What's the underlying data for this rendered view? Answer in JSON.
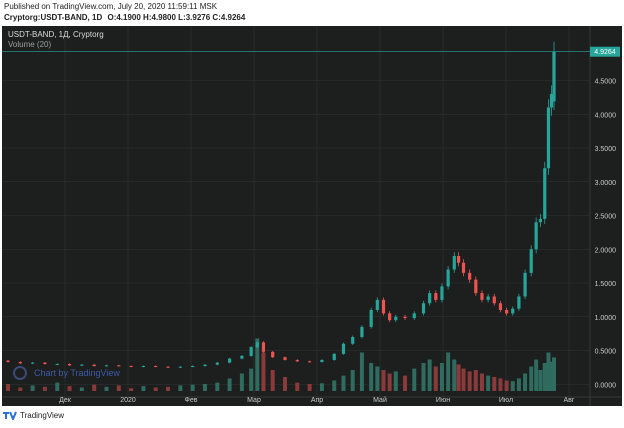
{
  "header": {
    "published": "Published on TradingView.com, July 20, 2020 11:59:11 MSK",
    "symbol_line": "Cryptorg:USDT-BAND, 1D",
    "ohlc": "O:4.1900 H:4.9800 L:3.9276 C:4.9264"
  },
  "legend": {
    "symbol": "USDT-BAND, 1Д, Cryptorg",
    "volume": "Volume (20)"
  },
  "watermark": "Chart by TradingView",
  "footer": {
    "brand": "TradingView"
  },
  "colors": {
    "background": "#1c1f1e",
    "grid": "#2e3432",
    "up": "#26a69a",
    "down": "#ef5350",
    "vol_up": "#2f6b5f",
    "vol_down": "#8a3a3a",
    "last_price": "#26a69a",
    "axis_text": "#c8ccca"
  },
  "chart_data": {
    "type": "candlestick",
    "title": "USDT-BAND, 1Д, Cryptorg",
    "ylim": [
      -0.1,
      5.1
    ],
    "yticks": [
      "0.0000",
      "0.5000",
      "1.0000",
      "1.5000",
      "2.0000",
      "2.5000",
      "3.0000",
      "3.5000",
      "4.0000",
      "4.5000"
    ],
    "last_price_label": "4.9264",
    "x_labels": [
      "Дек",
      "2020",
      "Фев",
      "Мар",
      "Апр",
      "Май",
      "Июн",
      "Июл",
      "Авг"
    ],
    "grid": true,
    "volume_series_name": "Volume (20)",
    "candles": [
      {
        "m": 0.0,
        "o": 0.35,
        "c": 0.33
      },
      {
        "m": 0.2,
        "o": 0.33,
        "c": 0.31
      },
      {
        "m": 0.4,
        "o": 0.31,
        "c": 0.32
      },
      {
        "m": 0.6,
        "o": 0.32,
        "c": 0.3
      },
      {
        "m": 0.8,
        "o": 0.3,
        "c": 0.3
      },
      {
        "m": 1.0,
        "o": 0.3,
        "c": 0.28
      },
      {
        "m": 1.2,
        "o": 0.28,
        "c": 0.29
      },
      {
        "m": 1.4,
        "o": 0.29,
        "c": 0.27
      },
      {
        "m": 1.6,
        "o": 0.27,
        "c": 0.28
      },
      {
        "m": 1.8,
        "o": 0.28,
        "c": 0.27
      },
      {
        "m": 2.0,
        "o": 0.27,
        "c": 0.26
      },
      {
        "m": 2.2,
        "o": 0.26,
        "c": 0.27
      },
      {
        "m": 2.4,
        "o": 0.27,
        "c": 0.26
      },
      {
        "m": 2.6,
        "o": 0.26,
        "c": 0.25
      },
      {
        "m": 2.8,
        "o": 0.25,
        "c": 0.26
      },
      {
        "m": 3.0,
        "o": 0.26,
        "c": 0.27
      },
      {
        "m": 3.2,
        "o": 0.27,
        "c": 0.29
      },
      {
        "m": 3.4,
        "o": 0.29,
        "c": 0.32
      },
      {
        "m": 3.6,
        "o": 0.32,
        "c": 0.38
      },
      {
        "m": 3.8,
        "o": 0.38,
        "c": 0.42
      },
      {
        "m": 3.95,
        "o": 0.42,
        "c": 0.55
      },
      {
        "m": 4.05,
        "o": 0.55,
        "c": 0.62
      },
      {
        "m": 4.15,
        "o": 0.62,
        "c": 0.48
      },
      {
        "m": 4.3,
        "o": 0.48,
        "c": 0.4
      },
      {
        "m": 4.5,
        "o": 0.4,
        "c": 0.36
      },
      {
        "m": 4.7,
        "o": 0.36,
        "c": 0.34
      },
      {
        "m": 4.9,
        "o": 0.34,
        "c": 0.33
      },
      {
        "m": 5.1,
        "o": 0.33,
        "c": 0.36
      },
      {
        "m": 5.3,
        "o": 0.36,
        "c": 0.45
      },
      {
        "m": 5.45,
        "o": 0.45,
        "c": 0.6
      },
      {
        "m": 5.6,
        "o": 0.6,
        "c": 0.7
      },
      {
        "m": 5.75,
        "o": 0.7,
        "c": 0.85
      },
      {
        "m": 5.9,
        "o": 0.85,
        "c": 1.1
      },
      {
        "m": 6.0,
        "o": 1.1,
        "c": 1.25
      },
      {
        "m": 6.1,
        "o": 1.25,
        "c": 1.05
      },
      {
        "m": 6.2,
        "o": 1.05,
        "c": 0.95
      },
      {
        "m": 6.3,
        "o": 0.95,
        "c": 1.0
      },
      {
        "m": 6.45,
        "o": 1.0,
        "c": 0.98
      },
      {
        "m": 6.6,
        "o": 0.98,
        "c": 1.05
      },
      {
        "m": 6.75,
        "o": 1.05,
        "c": 1.2
      },
      {
        "m": 6.85,
        "o": 1.2,
        "c": 1.35
      },
      {
        "m": 6.95,
        "o": 1.35,
        "c": 1.25
      },
      {
        "m": 7.05,
        "o": 1.25,
        "c": 1.45
      },
      {
        "m": 7.15,
        "o": 1.45,
        "c": 1.7
      },
      {
        "m": 7.25,
        "o": 1.7,
        "c": 1.9
      },
      {
        "m": 7.32,
        "o": 1.9,
        "c": 1.8
      },
      {
        "m": 7.4,
        "o": 1.8,
        "c": 1.65
      },
      {
        "m": 7.5,
        "o": 1.65,
        "c": 1.55
      },
      {
        "m": 7.6,
        "o": 1.55,
        "c": 1.35
      },
      {
        "m": 7.7,
        "o": 1.35,
        "c": 1.25
      },
      {
        "m": 7.8,
        "o": 1.25,
        "c": 1.3
      },
      {
        "m": 7.9,
        "o": 1.3,
        "c": 1.2
      },
      {
        "m": 8.0,
        "o": 1.2,
        "c": 1.1
      },
      {
        "m": 8.1,
        "o": 1.1,
        "c": 1.05
      },
      {
        "m": 8.2,
        "o": 1.05,
        "c": 1.12
      },
      {
        "m": 8.3,
        "o": 1.12,
        "c": 1.3
      },
      {
        "m": 8.4,
        "o": 1.3,
        "c": 1.65
      },
      {
        "m": 8.5,
        "o": 1.65,
        "c": 2.0
      },
      {
        "m": 8.58,
        "o": 2.0,
        "c": 2.4
      },
      {
        "m": 8.65,
        "o": 2.4,
        "c": 2.45
      },
      {
        "m": 8.72,
        "o": 2.45,
        "c": 3.2
      },
      {
        "m": 8.78,
        "o": 3.2,
        "c": 4.1
      },
      {
        "m": 8.83,
        "o": 4.1,
        "c": 4.3
      },
      {
        "m": 8.87,
        "o": 4.19,
        "c": 4.9264
      }
    ],
    "volume": [
      0.1,
      0.05,
      0.08,
      0.06,
      0.12,
      0.07,
      0.05,
      0.09,
      0.06,
      0.08,
      0.04,
      0.07,
      0.05,
      0.06,
      0.08,
      0.09,
      0.1,
      0.12,
      0.18,
      0.25,
      0.32,
      0.75,
      0.55,
      0.3,
      0.2,
      0.12,
      0.1,
      0.11,
      0.15,
      0.22,
      0.3,
      0.55,
      0.4,
      0.35,
      0.3,
      0.25,
      0.28,
      0.22,
      0.32,
      0.4,
      0.45,
      0.35,
      0.4,
      0.55,
      0.45,
      0.38,
      0.32,
      0.28,
      0.3,
      0.25,
      0.22,
      0.2,
      0.18,
      0.15,
      0.14,
      0.18,
      0.25,
      0.35,
      0.45,
      0.3,
      0.4,
      0.55,
      0.42,
      0.48
    ]
  }
}
